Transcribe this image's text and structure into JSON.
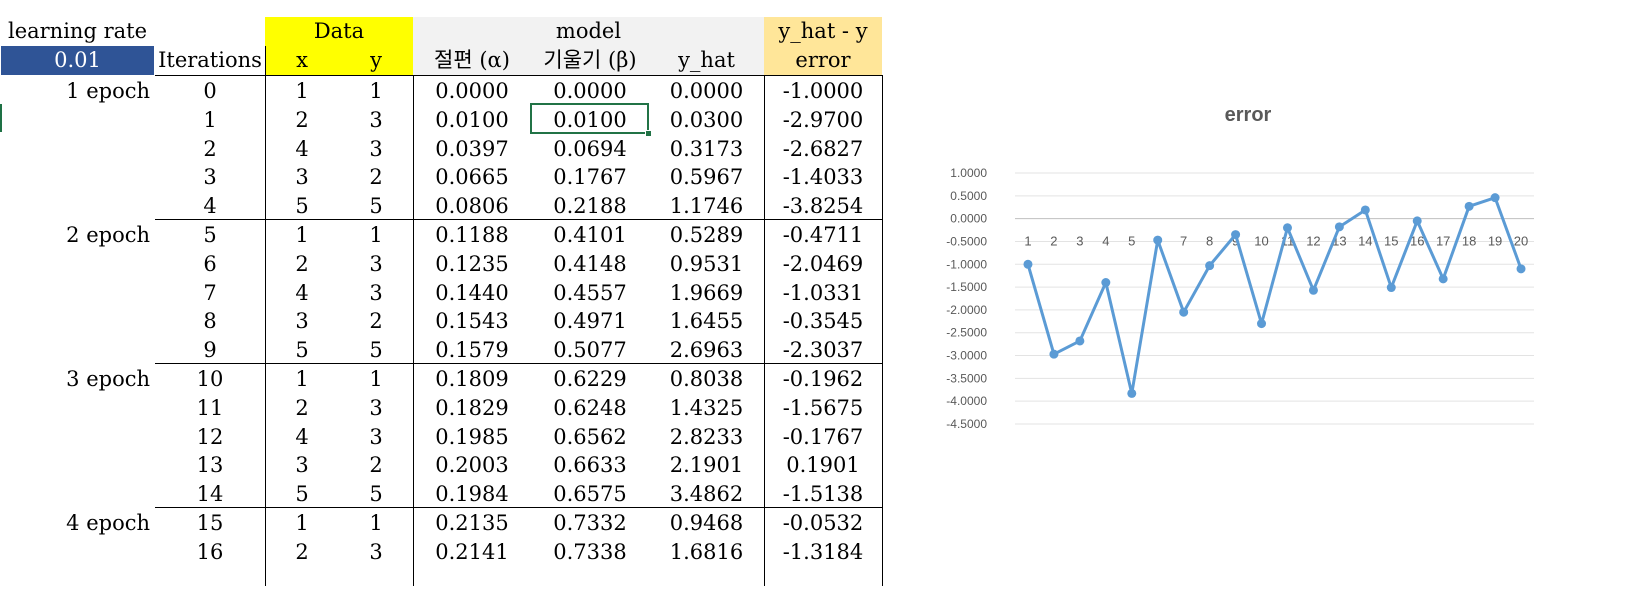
{
  "sheet": {
    "learning_rate_label": "learning rate",
    "learning_rate_value": "0.01",
    "iterations_header": "Iterations",
    "data_header": "Data",
    "x_header": "x",
    "y_header": "y",
    "model_header": "model",
    "intercept_header": "절편 (α)",
    "slope_header": "기울기 (β)",
    "yhat_header": "y_hat",
    "diff_header": "y_hat - y",
    "error_header": "error",
    "colors": {
      "selected_fill": "#2f5496",
      "data_fill": "#ffff00",
      "model_fill": "#f2f2f2",
      "error_fill": "#ffe699",
      "grid_accent": "#217346"
    },
    "epochs": [
      "1 epoch",
      "2 epoch",
      "3 epoch",
      "4 epoch"
    ],
    "rows": [
      {
        "it": "0",
        "x": "1",
        "y": "1",
        "a": "0.0000",
        "b": "0.0000",
        "yhat": "0.0000",
        "err": "-1.0000"
      },
      {
        "it": "1",
        "x": "2",
        "y": "3",
        "a": "0.0100",
        "b": "0.0100",
        "yhat": "0.0300",
        "err": "-2.9700"
      },
      {
        "it": "2",
        "x": "4",
        "y": "3",
        "a": "0.0397",
        "b": "0.0694",
        "yhat": "0.3173",
        "err": "-2.6827"
      },
      {
        "it": "3",
        "x": "3",
        "y": "2",
        "a": "0.0665",
        "b": "0.1767",
        "yhat": "0.5967",
        "err": "-1.4033"
      },
      {
        "it": "4",
        "x": "5",
        "y": "5",
        "a": "0.0806",
        "b": "0.2188",
        "yhat": "1.1746",
        "err": "-3.8254"
      },
      {
        "it": "5",
        "x": "1",
        "y": "1",
        "a": "0.1188",
        "b": "0.4101",
        "yhat": "0.5289",
        "err": "-0.4711"
      },
      {
        "it": "6",
        "x": "2",
        "y": "3",
        "a": "0.1235",
        "b": "0.4148",
        "yhat": "0.9531",
        "err": "-2.0469"
      },
      {
        "it": "7",
        "x": "4",
        "y": "3",
        "a": "0.1440",
        "b": "0.4557",
        "yhat": "1.9669",
        "err": "-1.0331"
      },
      {
        "it": "8",
        "x": "3",
        "y": "2",
        "a": "0.1543",
        "b": "0.4971",
        "yhat": "1.6455",
        "err": "-0.3545"
      },
      {
        "it": "9",
        "x": "5",
        "y": "5",
        "a": "0.1579",
        "b": "0.5077",
        "yhat": "2.6963",
        "err": "-2.3037"
      },
      {
        "it": "10",
        "x": "1",
        "y": "1",
        "a": "0.1809",
        "b": "0.6229",
        "yhat": "0.8038",
        "err": "-0.1962"
      },
      {
        "it": "11",
        "x": "2",
        "y": "3",
        "a": "0.1829",
        "b": "0.6248",
        "yhat": "1.4325",
        "err": "-1.5675"
      },
      {
        "it": "12",
        "x": "4",
        "y": "3",
        "a": "0.1985",
        "b": "0.6562",
        "yhat": "2.8233",
        "err": "-0.1767"
      },
      {
        "it": "13",
        "x": "3",
        "y": "2",
        "a": "0.2003",
        "b": "0.6633",
        "yhat": "2.1901",
        "err": "0.1901"
      },
      {
        "it": "14",
        "x": "5",
        "y": "5",
        "a": "0.1984",
        "b": "0.6575",
        "yhat": "3.4862",
        "err": "-1.5138"
      },
      {
        "it": "15",
        "x": "1",
        "y": "1",
        "a": "0.2135",
        "b": "0.7332",
        "yhat": "0.9468",
        "err": "-0.0532"
      },
      {
        "it": "16",
        "x": "2",
        "y": "3",
        "a": "0.2141",
        "b": "0.7338",
        "yhat": "1.6816",
        "err": "-1.3184"
      }
    ]
  },
  "chart_data": {
    "type": "line",
    "title": "error",
    "categories": [
      "1",
      "2",
      "3",
      "4",
      "5",
      "6",
      "7",
      "8",
      "9",
      "10",
      "11",
      "12",
      "13",
      "14",
      "15",
      "16",
      "17",
      "18",
      "19",
      "20"
    ],
    "series": [
      {
        "values": [
          -1.0,
          -2.97,
          -2.68,
          -1.4,
          -3.83,
          -0.47,
          -2.05,
          -1.03,
          -0.35,
          -2.3,
          -0.2,
          -1.57,
          -0.18,
          0.19,
          -1.51,
          -0.05,
          -1.32,
          0.27,
          0.46,
          -1.1
        ]
      }
    ],
    "ytick_labels": [
      "1.0000",
      "0.5000",
      "0.0000",
      "-0.5000",
      "-1.0000",
      "-1.5000",
      "-2.0000",
      "-2.5000",
      "-3.0000",
      "-3.5000",
      "-4.0000",
      "-4.5000"
    ],
    "ylim": [
      -4.5,
      1.0
    ],
    "grid": true,
    "color": "#5b9bd5"
  }
}
